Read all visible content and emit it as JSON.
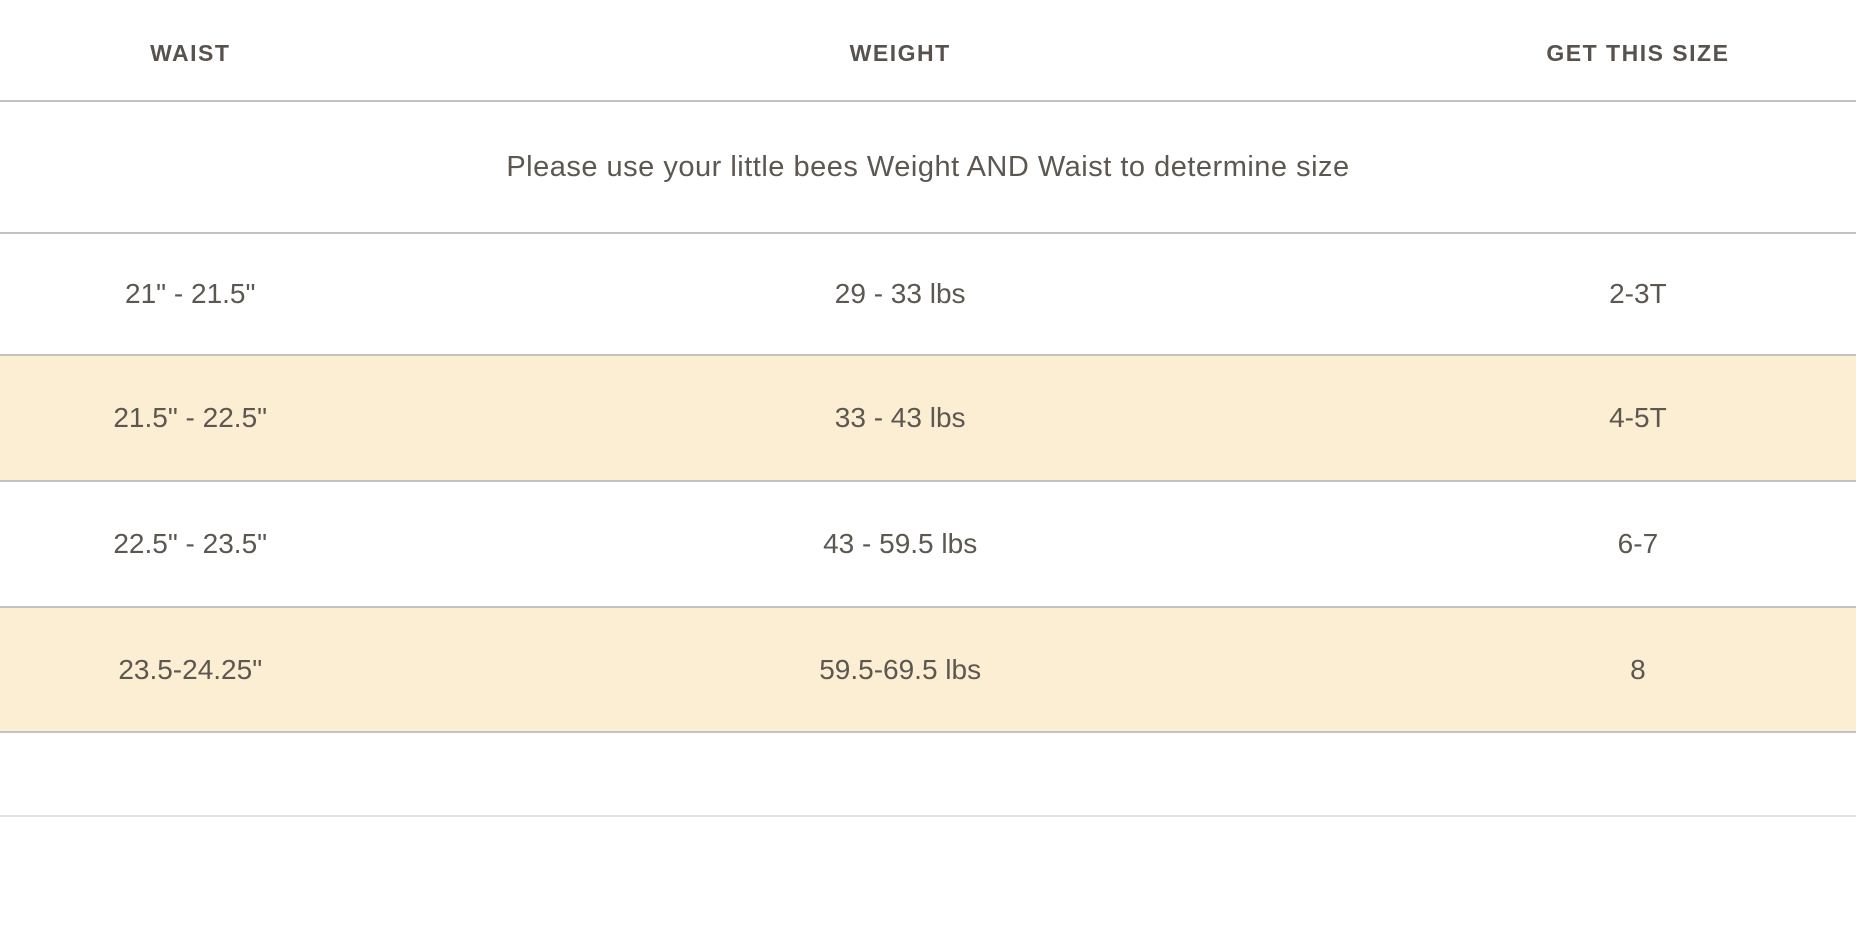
{
  "size_chart": {
    "columns": [
      "WAIST",
      "WEIGHT",
      "GET THIS SIZE"
    ],
    "note": "Please use your little bees Weight AND Waist to determine size",
    "rows": [
      {
        "waist": "21\" - 21.5\"",
        "weight": "29 - 33 lbs",
        "size": "2-3T",
        "highlighted": false
      },
      {
        "waist": "21.5\" - 22.5\"",
        "weight": "33 - 43 lbs",
        "size": "4-5T",
        "highlighted": true
      },
      {
        "waist": "22.5\" - 23.5\"",
        "weight": "43 - 59.5 lbs",
        "size": "6-7",
        "highlighted": false
      },
      {
        "waist": "23.5-24.25\"",
        "weight": "59.5-69.5 lbs",
        "size": "8",
        "highlighted": true
      }
    ],
    "colors": {
      "highlight_bg": "#fceed3",
      "row_border": "#c4c1be",
      "footer_border": "#e2e2e2",
      "header_text": "#57524e",
      "cell_text": "#5c5751",
      "page_bg": "#ffffff"
    }
  }
}
